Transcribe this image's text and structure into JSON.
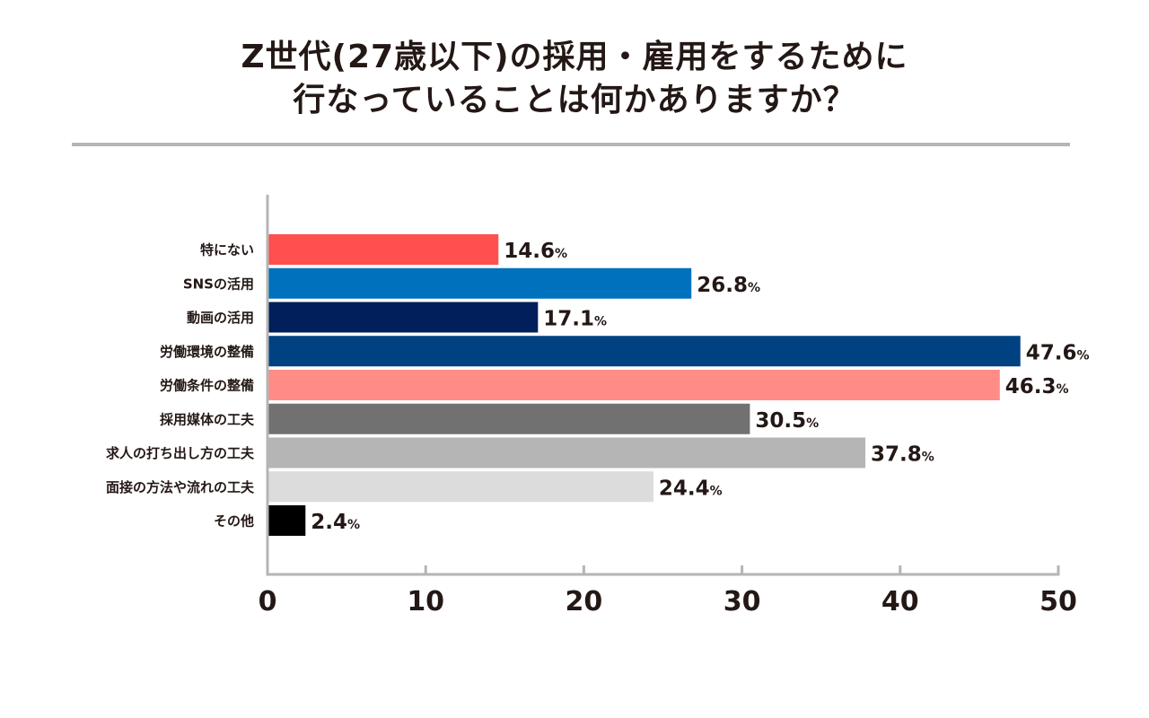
{
  "title": {
    "line1": "Z世代(27歳以下)の採用・雇用をするために",
    "line2": "行なっていることは何かありますか？"
  },
  "chart_data": {
    "type": "bar",
    "orientation": "horizontal",
    "categories": [
      "特にない",
      "SNSの活用",
      "動画の活用",
      "労働環境の整備",
      "労働条件の整備",
      "採用媒体の工夫",
      "求人の打ち出し方の工夫",
      "面接の方法や流れの工夫",
      "その他"
    ],
    "values": [
      14.6,
      26.8,
      17.1,
      47.6,
      46.3,
      30.5,
      37.8,
      24.4,
      2.4
    ],
    "value_labels": [
      "14.6",
      "26.8",
      "17.1",
      "47.6",
      "46.3",
      "30.5",
      "37.8",
      "24.4",
      "2.4"
    ],
    "unit": "%",
    "colors": [
      "#ff4f4f",
      "#0071bc",
      "#001f5b",
      "#004181",
      "#ff8c85",
      "#727171",
      "#b5b5b6",
      "#dcdcdd",
      "#000000"
    ],
    "xlim": [
      0,
      50
    ],
    "xticks": [
      "0",
      "10",
      "20",
      "30",
      "40",
      "50"
    ],
    "xtick_values": [
      0,
      10,
      20,
      30,
      40,
      50
    ],
    "axis_color": "#b5b5b6",
    "text_color": "#231815",
    "grid": false,
    "xlabel": "",
    "ylabel": ""
  }
}
